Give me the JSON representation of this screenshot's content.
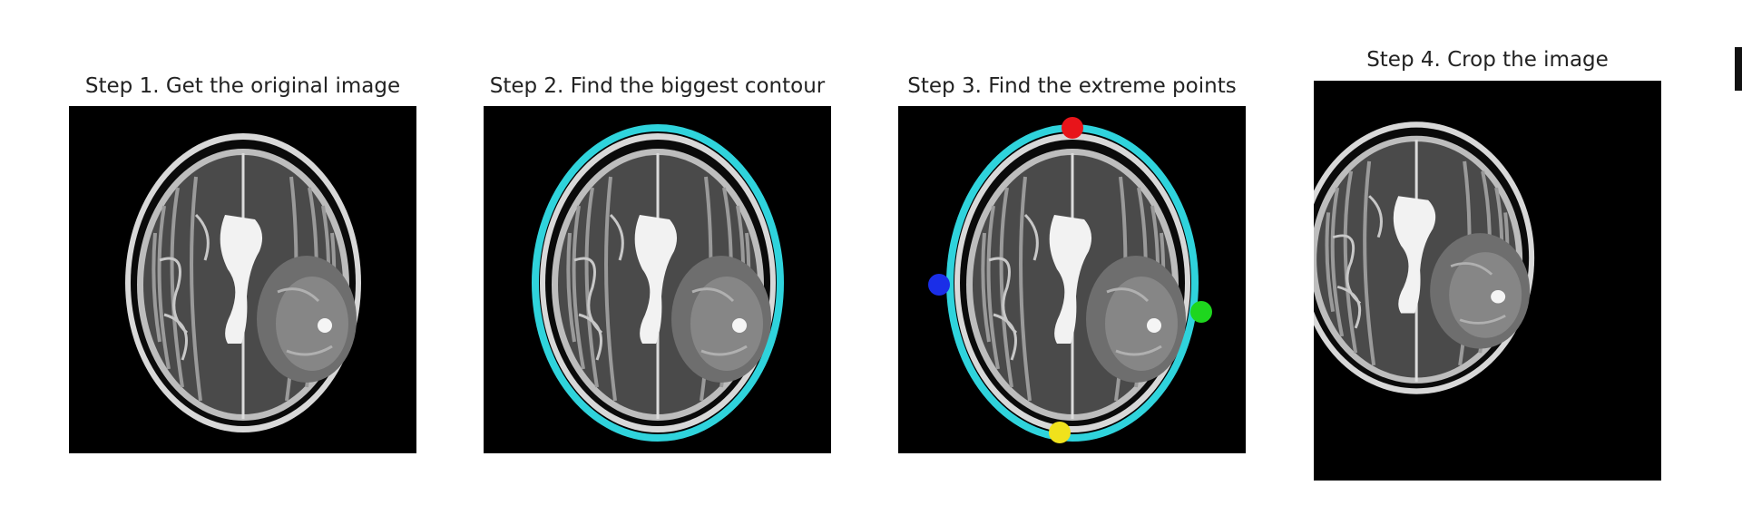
{
  "steps": [
    {
      "title": "Step 1. Get the original image"
    },
    {
      "title": "Step 2. Find the biggest contour"
    },
    {
      "title": "Step 3. Find the extreme points"
    },
    {
      "title": "Step 4. Crop the image"
    }
  ],
  "colors": {
    "background": "#000000",
    "contour": "#2fd3dc",
    "top_point": "#e8141a",
    "left_point": "#1a2ee8",
    "right_point": "#1ed61e",
    "bottom_point": "#f0e21c"
  }
}
